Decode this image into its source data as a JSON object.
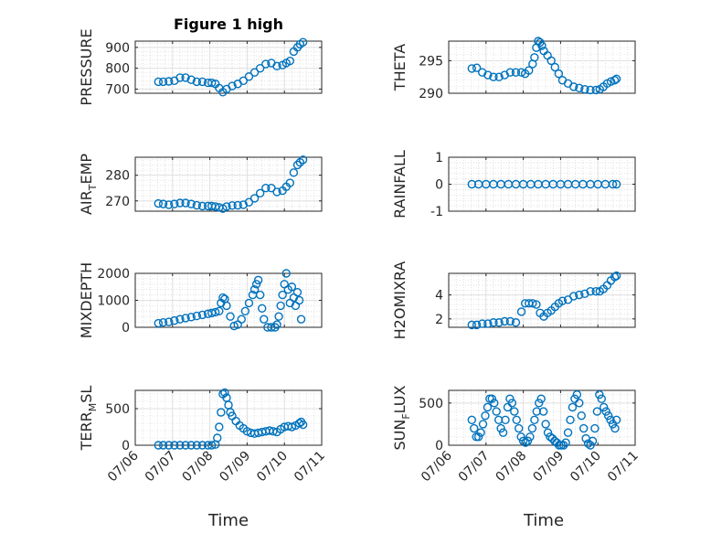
{
  "figure": {
    "title": "Figure 1 high",
    "xlabel": "Time"
  },
  "colors": {
    "marker": "#0072BD",
    "axis": "#262626",
    "grid": "#dfdfdf",
    "minor_grid": "#cfcfcf"
  },
  "chart_data": [
    {
      "type": "scatter",
      "ylabel": "PRESSURE",
      "title": "Figure 1 high",
      "xticks": [
        "07/06",
        "07/07",
        "07/08",
        "07/09",
        "07/10",
        "07/11"
      ],
      "xlim": [
        0,
        5
      ],
      "ylim": [
        680,
        930
      ],
      "yticks": [
        700,
        800,
        900
      ],
      "grid": true,
      "x": [
        0.62,
        0.75,
        0.9,
        1.05,
        1.2,
        1.35,
        1.5,
        1.65,
        1.8,
        1.95,
        2.05,
        2.15,
        2.25,
        2.35,
        2.45,
        2.6,
        2.75,
        2.9,
        3.05,
        3.2,
        3.35,
        3.5,
        3.65,
        3.8,
        3.95,
        4.05,
        4.15,
        4.25,
        4.35,
        4.42,
        4.5
      ],
      "y": [
        735,
        735,
        737,
        740,
        755,
        755,
        745,
        735,
        735,
        730,
        730,
        725,
        705,
        685,
        700,
        715,
        725,
        740,
        760,
        780,
        800,
        820,
        825,
        810,
        815,
        825,
        835,
        880,
        900,
        915,
        925
      ]
    },
    {
      "type": "scatter",
      "ylabel": "THETA",
      "xticks": [
        "07/06",
        "07/07",
        "07/08",
        "07/09",
        "07/10",
        "07/11"
      ],
      "xlim": [
        0,
        5
      ],
      "ylim": [
        290,
        298
      ],
      "yticks": [
        290,
        295
      ],
      "grid": true,
      "x": [
        0.62,
        0.75,
        0.9,
        1.05,
        1.2,
        1.35,
        1.5,
        1.65,
        1.8,
        1.95,
        2.05,
        2.15,
        2.25,
        2.3,
        2.35,
        2.4,
        2.45,
        2.5,
        2.55,
        2.65,
        2.75,
        2.85,
        2.95,
        3.05,
        3.2,
        3.35,
        3.5,
        3.65,
        3.8,
        3.95,
        4.05,
        4.15,
        4.25,
        4.35,
        4.45,
        4.5
      ],
      "y": [
        293.8,
        293.9,
        293.2,
        292.8,
        292.5,
        292.5,
        292.8,
        293.2,
        293.2,
        293.2,
        293,
        293.5,
        294.5,
        295.5,
        297,
        298,
        297.8,
        297.3,
        296.5,
        295.8,
        295,
        294,
        293,
        292,
        291.5,
        291,
        290.8,
        290.6,
        290.5,
        290.5,
        290.6,
        291,
        291.5,
        291.8,
        292,
        292.2
      ]
    },
    {
      "type": "scatter",
      "ylabel": "AIR_TEMP",
      "xticks": [
        "07/06",
        "07/07",
        "07/08",
        "07/09",
        "07/10",
        "07/11"
      ],
      "xlim": [
        0,
        5
      ],
      "ylim": [
        266,
        287
      ],
      "yticks": [
        270,
        280
      ],
      "grid": true,
      "x": [
        0.62,
        0.75,
        0.9,
        1.05,
        1.2,
        1.35,
        1.5,
        1.65,
        1.8,
        1.95,
        2.05,
        2.15,
        2.25,
        2.35,
        2.45,
        2.6,
        2.75,
        2.9,
        3.05,
        3.2,
        3.35,
        3.5,
        3.65,
        3.8,
        3.95,
        4.05,
        4.15,
        4.25,
        4.35,
        4.42,
        4.5
      ],
      "y": [
        269,
        268.8,
        268.5,
        268.8,
        269.2,
        269.2,
        268.8,
        268.3,
        268,
        268,
        268,
        267.8,
        267.5,
        267,
        267.8,
        268.2,
        268.3,
        268.5,
        269.5,
        271,
        273,
        275,
        275,
        273.5,
        274,
        275.5,
        277,
        281,
        284,
        285,
        286
      ]
    },
    {
      "type": "scatter",
      "ylabel": "RAINFALL",
      "xticks": [
        "07/06",
        "07/07",
        "07/08",
        "07/09",
        "07/10",
        "07/11"
      ],
      "xlim": [
        0,
        5
      ],
      "ylim": [
        -1,
        1
      ],
      "yticks": [
        -1,
        0,
        1
      ],
      "grid": true,
      "x": [
        0.62,
        0.8,
        1,
        1.2,
        1.4,
        1.6,
        1.8,
        2,
        2.2,
        2.4,
        2.6,
        2.8,
        3,
        3.2,
        3.4,
        3.6,
        3.8,
        4,
        4.2,
        4.4,
        4.5
      ],
      "y": [
        0,
        0,
        0,
        0,
        0,
        0,
        0,
        0,
        0,
        0,
        0,
        0,
        0,
        0,
        0,
        0,
        0,
        0,
        0,
        0,
        0
      ]
    },
    {
      "type": "scatter",
      "ylabel": "MIXDEPTH",
      "xticks": [
        "07/06",
        "07/07",
        "07/08",
        "07/09",
        "07/10",
        "07/11"
      ],
      "xlim": [
        0,
        5
      ],
      "ylim": [
        0,
        2000
      ],
      "yticks": [
        0,
        1000,
        2000
      ],
      "grid": true,
      "x": [
        0.62,
        0.75,
        0.9,
        1.05,
        1.2,
        1.35,
        1.5,
        1.65,
        1.8,
        1.95,
        2.05,
        2.15,
        2.25,
        2.3,
        2.35,
        2.4,
        2.45,
        2.55,
        2.65,
        2.75,
        2.85,
        2.95,
        3.05,
        3.15,
        3.2,
        3.25,
        3.3,
        3.35,
        3.4,
        3.45,
        3.55,
        3.65,
        3.75,
        3.8,
        3.85,
        3.9,
        3.95,
        4,
        4.05,
        4.1,
        4.15,
        4.2,
        4.25,
        4.3,
        4.35,
        4.4,
        4.45
      ],
      "y": [
        150,
        180,
        200,
        250,
        300,
        340,
        380,
        420,
        460,
        500,
        530,
        560,
        600,
        900,
        1100,
        1050,
        800,
        400,
        50,
        100,
        300,
        600,
        900,
        1200,
        1400,
        1600,
        1750,
        1200,
        700,
        300,
        0,
        0,
        0,
        100,
        400,
        800,
        1200,
        1600,
        2000,
        1400,
        900,
        1500,
        1100,
        800,
        1300,
        1000,
        300
      ]
    },
    {
      "type": "scatter",
      "ylabel": "H2OMIXRA",
      "xticks": [
        "07/06",
        "07/07",
        "07/08",
        "07/09",
        "07/10",
        "07/11"
      ],
      "xlim": [
        0,
        5
      ],
      "ylim": [
        1.3,
        5.8
      ],
      "yticks": [
        2,
        4
      ],
      "grid": true,
      "x": [
        0.62,
        0.75,
        0.9,
        1.05,
        1.2,
        1.35,
        1.5,
        1.65,
        1.8,
        1.95,
        2.05,
        2.15,
        2.25,
        2.35,
        2.45,
        2.55,
        2.65,
        2.75,
        2.85,
        2.95,
        3.05,
        3.2,
        3.35,
        3.5,
        3.65,
        3.8,
        3.95,
        4.05,
        4.15,
        4.25,
        4.35,
        4.45,
        4.5
      ],
      "y": [
        1.5,
        1.5,
        1.6,
        1.6,
        1.7,
        1.7,
        1.8,
        1.8,
        1.7,
        2.6,
        3.3,
        3.3,
        3.3,
        3.2,
        2.5,
        2.2,
        2.5,
        2.7,
        3,
        3.3,
        3.5,
        3.6,
        3.9,
        4,
        4.1,
        4.3,
        4.3,
        4.3,
        4.5,
        4.8,
        5.2,
        5.5,
        5.6
      ]
    },
    {
      "type": "scatter",
      "ylabel": "TERR_MSL",
      "xticks": [
        "07/06",
        "07/07",
        "07/08",
        "07/09",
        "07/10",
        "07/11"
      ],
      "xlim": [
        0,
        5
      ],
      "ylim": [
        0,
        750
      ],
      "yticks": [
        0,
        500
      ],
      "grid": true,
      "x": [
        0.62,
        0.75,
        0.9,
        1.05,
        1.2,
        1.35,
        1.5,
        1.65,
        1.8,
        1.95,
        2.05,
        2.15,
        2.2,
        2.25,
        2.3,
        2.35,
        2.4,
        2.45,
        2.5,
        2.55,
        2.6,
        2.7,
        2.8,
        2.9,
        3,
        3.1,
        3.2,
        3.3,
        3.4,
        3.5,
        3.6,
        3.7,
        3.8,
        3.9,
        4,
        4.1,
        4.2,
        4.3,
        4.4,
        4.45,
        4.5
      ],
      "y": [
        0,
        0,
        0,
        0,
        0,
        0,
        0,
        0,
        0,
        0,
        0,
        10,
        100,
        250,
        450,
        700,
        720,
        650,
        550,
        450,
        400,
        330,
        270,
        230,
        190,
        170,
        160,
        170,
        180,
        190,
        200,
        190,
        180,
        220,
        250,
        260,
        250,
        270,
        300,
        320,
        280
      ]
    },
    {
      "type": "scatter",
      "ylabel": "SUN_FLUX",
      "xticks": [
        "07/06",
        "07/07",
        "07/08",
        "07/09",
        "07/10",
        "07/11"
      ],
      "xlim": [
        0,
        5
      ],
      "ylim": [
        0,
        650
      ],
      "yticks": [
        0,
        500
      ],
      "grid": true,
      "x": [
        0.62,
        0.68,
        0.74,
        0.8,
        0.86,
        0.92,
        0.98,
        1.04,
        1.1,
        1.16,
        1.22,
        1.28,
        1.34,
        1.4,
        1.46,
        1.52,
        1.58,
        1.64,
        1.7,
        1.76,
        1.82,
        1.88,
        1.94,
        2,
        2.06,
        2.12,
        2.18,
        2.24,
        2.3,
        2.36,
        2.42,
        2.48,
        2.54,
        2.6,
        2.66,
        2.72,
        2.78,
        2.84,
        2.9,
        2.96,
        3.02,
        3.08,
        3.14,
        3.2,
        3.26,
        3.32,
        3.38,
        3.44,
        3.5,
        3.56,
        3.62,
        3.68,
        3.74,
        3.8,
        3.86,
        3.92,
        3.98,
        4.04,
        4.1,
        4.16,
        4.22,
        4.28,
        4.34,
        4.4,
        4.46,
        4.5
      ],
      "y": [
        300,
        200,
        100,
        100,
        150,
        250,
        350,
        450,
        550,
        550,
        500,
        400,
        300,
        200,
        150,
        300,
        450,
        550,
        500,
        400,
        300,
        200,
        100,
        50,
        30,
        50,
        100,
        200,
        300,
        400,
        500,
        550,
        400,
        250,
        150,
        100,
        80,
        50,
        30,
        0,
        0,
        0,
        30,
        150,
        300,
        450,
        550,
        600,
        500,
        350,
        200,
        80,
        20,
        0,
        50,
        200,
        400,
        600,
        550,
        450,
        400,
        350,
        300,
        250,
        200,
        300
      ]
    }
  ]
}
